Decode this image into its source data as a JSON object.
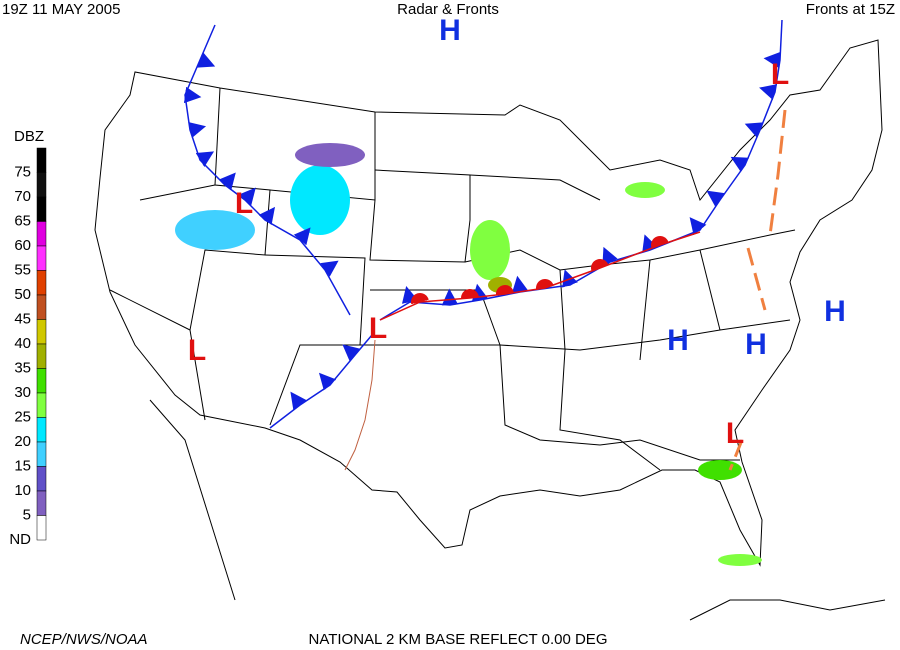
{
  "header": {
    "left": "19Z  11 MAY  2005",
    "center": "Radar & Fronts",
    "right": "Fronts at 15Z"
  },
  "legend": {
    "title": "DBZ",
    "levels": [
      {
        "label": "75",
        "color": "#000000"
      },
      {
        "label": "70",
        "color": "#101010"
      },
      {
        "label": "65",
        "color": "#000000"
      },
      {
        "label": "60",
        "color": "#e000e0"
      },
      {
        "label": "55",
        "color": "#ff30ff"
      },
      {
        "label": "50",
        "color": "#e04000"
      },
      {
        "label": "45",
        "color": "#c05020"
      },
      {
        "label": "40",
        "color": "#d0c800"
      },
      {
        "label": "35",
        "color": "#a0b000"
      },
      {
        "label": "30",
        "color": "#40e000"
      },
      {
        "label": "25",
        "color": "#80ff40"
      },
      {
        "label": "20",
        "color": "#00e8ff"
      },
      {
        "label": "15",
        "color": "#40d0ff"
      },
      {
        "label": "10",
        "color": "#6050c8"
      },
      {
        "label": "5",
        "color": "#8060c0"
      },
      {
        "label": "ND",
        "color": "#ffffff"
      }
    ]
  },
  "pressure_centers": [
    {
      "label": "H",
      "color": "#1030e0"
    },
    {
      "label": "L",
      "color": "#e01010"
    },
    {
      "label": "L",
      "color": "#e01010"
    },
    {
      "label": "L",
      "color": "#e01010"
    },
    {
      "label": "L",
      "color": "#e01010"
    },
    {
      "label": "H",
      "color": "#1030e0"
    },
    {
      "label": "H",
      "color": "#1030e0"
    },
    {
      "label": "H",
      "color": "#1030e0"
    },
    {
      "label": "L",
      "color": "#e01010"
    }
  ],
  "footer": {
    "credit": "NCEP/NWS/NOAA",
    "product": "NATIONAL 2 KM BASE REFLECT 0.00 DEG"
  }
}
